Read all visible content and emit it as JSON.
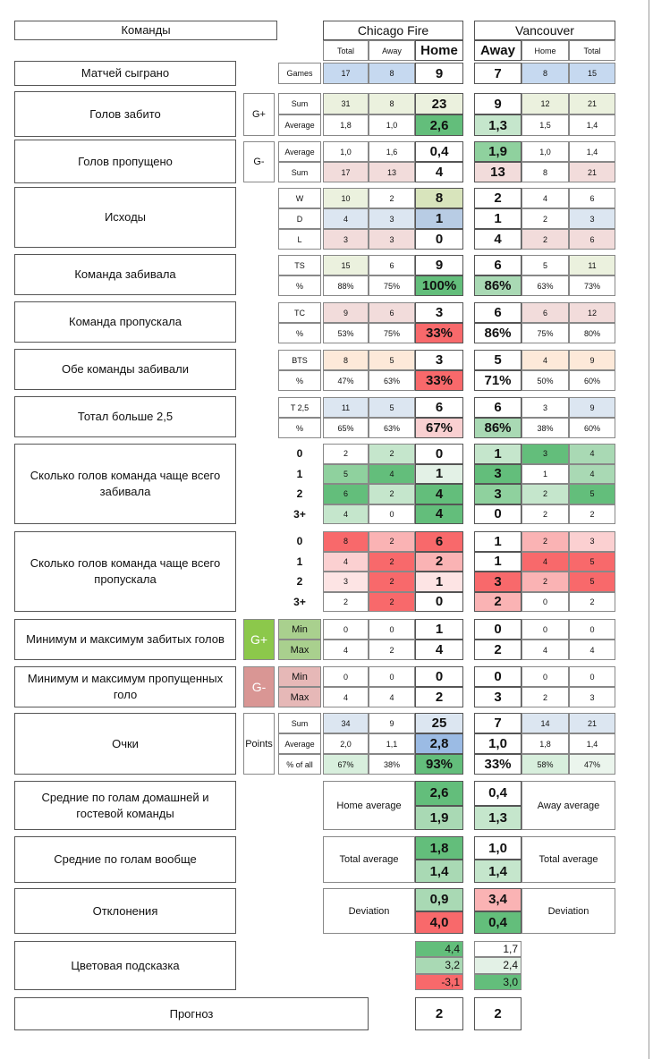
{
  "header": {
    "teams_label": "Команды",
    "team1": "Chicago Fire",
    "team2": "Vancouver",
    "columns": [
      "Total",
      "Away",
      "Home",
      "Away",
      "Home",
      "Total"
    ]
  },
  "sections": [
    {
      "label": "Матчей сыграно",
      "rows": [
        {
          "label": "Games",
          "cells": [
            "17",
            "8",
            "9",
            "7",
            "8",
            "15"
          ],
          "fills": [
            "#c6d9f0",
            "#c6d9f0",
            null,
            null,
            "#c6d9f0",
            "#c6d9f0"
          ]
        }
      ]
    },
    {
      "label": "Голов забито",
      "group": "G+",
      "rows": [
        {
          "label": "Sum",
          "cells": [
            "31",
            "8",
            "23",
            "9",
            "12",
            "21"
          ],
          "fills": [
            "#ebf1de",
            "#ebf1de",
            "#ebf1de",
            null,
            "#ebf1de",
            "#ebf1de"
          ]
        },
        {
          "label": "Average",
          "cells": [
            "1,8",
            "1,0",
            "2,6",
            "1,3",
            "1,5",
            "1,4"
          ],
          "fills": [
            null,
            null,
            "#63be7b",
            "#c5e6cc",
            null,
            null
          ]
        }
      ]
    },
    {
      "label": "Голов пропущено",
      "group": "G-",
      "rows": [
        {
          "label": "Average",
          "cells": [
            "1,0",
            "1,6",
            "0,4",
            "1,9",
            "1,0",
            "1,4"
          ],
          "fills": [
            null,
            null,
            null,
            "#8fd19e",
            null,
            null
          ]
        },
        {
          "label": "Sum",
          "cells": [
            "17",
            "13",
            "4",
            "13",
            "8",
            "21"
          ],
          "fills": [
            "#f2dcdb",
            "#f2dcdb",
            null,
            "#f2dcdb",
            null,
            "#f2dcdb"
          ]
        }
      ]
    },
    {
      "label": "Исходы",
      "rows": [
        {
          "label": "W",
          "cells": [
            "10",
            "2",
            "8",
            "2",
            "4",
            "6"
          ],
          "fills": [
            "#ebf1de",
            null,
            "#d8e4bc",
            null,
            null,
            null
          ]
        },
        {
          "label": "D",
          "cells": [
            "4",
            "3",
            "1",
            "1",
            "2",
            "3"
          ],
          "fills": [
            "#dce6f1",
            "#dce6f1",
            "#b8cce4",
            null,
            null,
            "#dce6f1"
          ]
        },
        {
          "label": "L",
          "cells": [
            "3",
            "3",
            "0",
            "4",
            "2",
            "6"
          ],
          "fills": [
            "#f2dcdb",
            "#f2dcdb",
            null,
            null,
            "#f2dcdb",
            "#f2dcdb"
          ]
        }
      ]
    },
    {
      "label": "Команда забивала",
      "rows": [
        {
          "label": "TS",
          "cells": [
            "15",
            "6",
            "9",
            "6",
            "5",
            "11"
          ],
          "fills": [
            "#ebf1de",
            null,
            null,
            null,
            null,
            "#ebf1de"
          ]
        },
        {
          "label": "%",
          "cells": [
            "88%",
            "75%",
            "100%",
            "86%",
            "63%",
            "73%"
          ],
          "fills": [
            null,
            null,
            "#63be7b",
            "#a9d9b4",
            null,
            null
          ]
        }
      ]
    },
    {
      "label": "Команда пропускала",
      "rows": [
        {
          "label": "TC",
          "cells": [
            "9",
            "6",
            "3",
            "6",
            "6",
            "12"
          ],
          "fills": [
            "#f2dcdb",
            "#f2dcdb",
            null,
            null,
            "#f2dcdb",
            "#f2dcdb"
          ]
        },
        {
          "label": "%",
          "cells": [
            "53%",
            "75%",
            "33%",
            "86%",
            "75%",
            "80%"
          ],
          "fills": [
            null,
            null,
            "#f8696b",
            null,
            null,
            null
          ]
        }
      ]
    },
    {
      "label": "Обе команды забивали",
      "rows": [
        {
          "label": "BTS",
          "cells": [
            "8",
            "5",
            "3",
            "5",
            "4",
            "9"
          ],
          "fills": [
            "#fde9d9",
            "#fde9d9",
            null,
            null,
            "#fde9d9",
            "#fde9d9"
          ]
        },
        {
          "label": "%",
          "cells": [
            "47%",
            "63%",
            "33%",
            "71%",
            "50%",
            "60%"
          ],
          "fills": [
            null,
            null,
            "#f8696b",
            null,
            null,
            null
          ]
        }
      ]
    },
    {
      "label": "Тотал больше 2,5",
      "rows": [
        {
          "label": "T 2,5",
          "cells": [
            "11",
            "5",
            "6",
            "6",
            "3",
            "9"
          ],
          "fills": [
            "#dce6f1",
            "#dce6f1",
            null,
            null,
            null,
            "#dce6f1"
          ]
        },
        {
          "label": "%",
          "cells": [
            "65%",
            "63%",
            "67%",
            "86%",
            "38%",
            "60%"
          ],
          "fills": [
            null,
            null,
            "#f9d0d1",
            "#a9d9b4",
            null,
            null
          ]
        }
      ]
    },
    {
      "label": "Сколько голов команда чаще всего забивала",
      "rows": [
        {
          "label": "0",
          "cells": [
            "2",
            "2",
            "0",
            "1",
            "3",
            "4"
          ],
          "fills": [
            null,
            "#c5e6cc",
            null,
            "#c5e6cc",
            "#63be7b",
            "#a9d9b4"
          ]
        },
        {
          "label": "1",
          "cells": [
            "5",
            "4",
            "1",
            "3",
            "1",
            "4"
          ],
          "fills": [
            "#8fd19e",
            "#63be7b",
            "#e3f1e6",
            "#63be7b",
            null,
            "#a9d9b4"
          ]
        },
        {
          "label": "2",
          "cells": [
            "6",
            "2",
            "4",
            "3",
            "2",
            "5"
          ],
          "fills": [
            "#63be7b",
            "#c5e6cc",
            "#63be7b",
            "#8fd19e",
            "#c5e6cc",
            "#63be7b"
          ]
        },
        {
          "label": "3+",
          "cells": [
            "4",
            "0",
            "4",
            "0",
            "2",
            "2"
          ],
          "fills": [
            "#c5e6cc",
            null,
            "#63be7b",
            null,
            null,
            null
          ]
        }
      ]
    },
    {
      "label": "Сколько голов команда чаще всего пропускала",
      "rows": [
        {
          "label": "0",
          "cells": [
            "8",
            "2",
            "6",
            "1",
            "2",
            "3"
          ],
          "fills": [
            "#f8696b",
            "#fab3b4",
            "#f8696b",
            null,
            "#fab3b4",
            "#fbd0d1"
          ]
        },
        {
          "label": "1",
          "cells": [
            "4",
            "2",
            "2",
            "1",
            "4",
            "5"
          ],
          "fills": [
            "#fbd0d1",
            "#f8696b",
            "#fab3b4",
            null,
            "#f8696b",
            "#f8696b"
          ]
        },
        {
          "label": "2",
          "cells": [
            "3",
            "2",
            "1",
            "3",
            "2",
            "5"
          ],
          "fills": [
            "#fde4e4",
            "#f8696b",
            "#fde4e4",
            "#f8696b",
            "#fab3b4",
            "#f8696b"
          ]
        },
        {
          "label": "3+",
          "cells": [
            "2",
            "2",
            "0",
            "2",
            "0",
            "2"
          ],
          "fills": [
            null,
            "#f8696b",
            null,
            "#fab3b4",
            null,
            null
          ]
        }
      ]
    },
    {
      "label": "Минимум и максимум забитых голов",
      "group": "G+",
      "group_color": "#8cc84b",
      "row_color": "#a9d08e",
      "rows": [
        {
          "label": "Min",
          "cells": [
            "0",
            "0",
            "1",
            "0",
            "0",
            "0"
          ]
        },
        {
          "label": "Max",
          "cells": [
            "4",
            "2",
            "4",
            "2",
            "4",
            "4"
          ]
        }
      ]
    },
    {
      "label": "Минимум и максимум пропущенных голо",
      "group": "G-",
      "group_color": "#d99694",
      "row_color": "#e6b8b7",
      "rows": [
        {
          "label": "Min",
          "cells": [
            "0",
            "0",
            "0",
            "0",
            "0",
            "0"
          ]
        },
        {
          "label": "Max",
          "cells": [
            "4",
            "4",
            "2",
            "3",
            "2",
            "3"
          ]
        }
      ]
    },
    {
      "label": "Очки",
      "group": "Points",
      "rows": [
        {
          "label": "Sum",
          "cells": [
            "34",
            "9",
            "25",
            "7",
            "14",
            "21"
          ],
          "fills": [
            "#dce6f1",
            null,
            "#dce6f1",
            null,
            "#dce6f1",
            "#dce6f1"
          ]
        },
        {
          "label": "Average",
          "cells": [
            "2,0",
            "1,1",
            "2,8",
            "1,0",
            "1,8",
            "1,4"
          ],
          "fills": [
            null,
            null,
            "#9bbbe4",
            null,
            null,
            null
          ]
        },
        {
          "label": "% of all",
          "cells": [
            "67%",
            "38%",
            "93%",
            "33%",
            "58%",
            "47%"
          ],
          "fills": [
            "#d8efdd",
            null,
            "#63be7b",
            null,
            "#d8efdd",
            "#ebf5ed"
          ]
        }
      ]
    }
  ],
  "averages": [
    {
      "label": "Средние по голам домашней и гостевой команды",
      "left_note": "Home average",
      "right_note": "Away average",
      "home": [
        "2,6",
        "1,9"
      ],
      "away": [
        "0,4",
        "1,3"
      ],
      "home_fills": [
        "#63be7b",
        "#a9d9b4"
      ],
      "away_fills": [
        null,
        "#c5e6cc"
      ]
    },
    {
      "label": "Средние по голам вообще",
      "left_note": "Total average",
      "right_note": "Total average",
      "home": [
        "1,8",
        "1,4"
      ],
      "away": [
        "1,0",
        "1,4"
      ],
      "home_fills": [
        "#63be7b",
        "#a9d9b4"
      ],
      "away_fills": [
        null,
        "#c5e6cc"
      ]
    },
    {
      "label": "Отклонения",
      "left_note": "Deviation",
      "right_note": "Deviation",
      "home": [
        "0,9",
        "4,0"
      ],
      "away": [
        "3,4",
        "0,4"
      ],
      "home_fills": [
        "#a9d9b4",
        "#f8696b"
      ],
      "away_fills": [
        "#fab3b4",
        "#63be7b"
      ]
    }
  ],
  "color_hint": {
    "label": "Цветовая подсказка",
    "home": [
      "4,4",
      "3,2",
      "-3,1"
    ],
    "away": [
      "1,7",
      "2,4",
      "3,0"
    ],
    "home_fills": [
      "#63be7b",
      "#a9d9b4",
      "#f8696b"
    ],
    "away_fills": [
      null,
      "#e3f1e6",
      "#63be7b"
    ]
  },
  "forecast": {
    "label": "Прогноз",
    "home": "2",
    "away": "2"
  }
}
